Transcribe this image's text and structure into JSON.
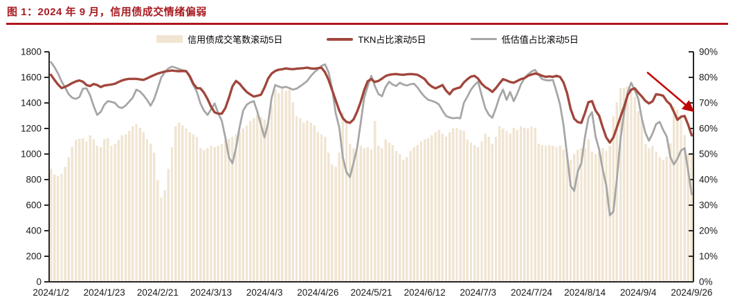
{
  "title": "图 1：2024 年 9 月，信用债成交情绪偏弱",
  "colors": {
    "title_red": "#A81C22",
    "divider_red": "#B2131B",
    "bar_fill": "#F0E5D2",
    "tkn_line": "#A0463C",
    "undervalued_line": "#A6A6A6",
    "axis": "#262626",
    "arrow": "#C00505"
  },
  "chart_data": {
    "type": "combo",
    "title": "图 1：2024 年 9 月，信用债成交情绪偏弱",
    "grid": false,
    "legend_position": "top",
    "left_axis": {
      "min": 0,
      "max": 1800,
      "step": 200
    },
    "right_axis": {
      "min": 0,
      "max": 90,
      "step": 10,
      "suffix": "%"
    },
    "x_tick_labels": [
      "2024/1/2",
      "2024/1/23",
      "2024/2/21",
      "2024/3/13",
      "2024/4/3",
      "2024/4/26",
      "2024/5/21",
      "2024/6/12",
      "2024/7/3",
      "2024/7/24",
      "2024/8/14",
      "2024/9/4",
      "2024/9/26"
    ],
    "x_tick_days": [
      0,
      15,
      30,
      45,
      60,
      75,
      90,
      105,
      120,
      135,
      150,
      165,
      180
    ],
    "n_points": 181,
    "series": [
      {
        "name": "信用债成交笔数滚动5日",
        "type": "bar",
        "axis": "left",
        "color": "#F0E5D2",
        "values": [
          885,
          840,
          830,
          845,
          900,
          975,
          1055,
          1110,
          1120,
          1125,
          1100,
          1145,
          1115,
          1065,
          1055,
          1115,
          1125,
          1065,
          1080,
          1110,
          1145,
          1155,
          1180,
          1215,
          1235,
          1205,
          1170,
          1115,
          1080,
          1010,
          795,
          660,
          715,
          885,
          1055,
          1215,
          1245,
          1225,
          1200,
          1170,
          1155,
          1135,
          1045,
          1030,
          1045,
          1065,
          1055,
          1065,
          1080,
          1110,
          1120,
          1135,
          1155,
          1170,
          1200,
          1225,
          1260,
          1280,
          1305,
          1290,
          1270,
          1250,
          1385,
          1505,
          1475,
          1520,
          1495,
          1505,
          1405,
          1295,
          1280,
          1245,
          1260,
          1245,
          1225,
          1170,
          1155,
          1135,
          1010,
          920,
          900,
          1010,
          1325,
          1245,
          1080,
          1045,
          1025,
          1065,
          1045,
          1055,
          1035,
          1260,
          1065,
          1045,
          1115,
          1090,
          1070,
          1025,
          1000,
          955,
          975,
          1025,
          1055,
          1070,
          1100,
          1115,
          1125,
          1145,
          1170,
          1190,
          1160,
          1135,
          1170,
          1200,
          1205,
          1190,
          1180,
          1110,
          1090,
          1070,
          1055,
          1100,
          1160,
          1135,
          1080,
          1135,
          1215,
          1200,
          1180,
          1160,
          1205,
          1190,
          1215,
          1205,
          1200,
          1215,
          1205,
          1080,
          1070,
          1065,
          1070,
          1065,
          1055,
          1065,
          1035,
          1010,
          955,
          1000,
          1035,
          1045,
          1045,
          1115,
          1020,
          1000,
          1010,
          1045,
          1025,
          1065,
          1295,
          1405,
          1515,
          1520,
          1530,
          1505,
          1450,
          1335,
          1270,
          1080,
          1045,
          1065,
          1020,
          975,
          955,
          980,
          1085,
          1370,
          1345,
          1305,
          1150,
          1000,
          1010
        ]
      },
      {
        "name": "TKN占比滚动5日",
        "type": "line",
        "axis": "right",
        "color": "#A0463C",
        "values": [
          81,
          79,
          77.2,
          75.8,
          76.3,
          77,
          77.8,
          78.4,
          78.8,
          78.3,
          77,
          76.6,
          77.4,
          77,
          76.2,
          76.8,
          77,
          77.2,
          77.5,
          78.2,
          78.8,
          79.2,
          79.4,
          79.4,
          79.4,
          79.2,
          79,
          79.6,
          80.3,
          80.9,
          81.5,
          81.9,
          82.3,
          82.5,
          82.7,
          82.5,
          82.4,
          82.5,
          82.4,
          80.5,
          77.5,
          75.8,
          75.7,
          74,
          71.5,
          68.5,
          66.3,
          65.8,
          65.8,
          68,
          72,
          76.5,
          78.6,
          77.5,
          75.8,
          74.3,
          73.3,
          72.5,
          72.8,
          73.2,
          76,
          79.5,
          81.5,
          82.5,
          83,
          83.2,
          83.5,
          83.3,
          83.2,
          83.4,
          83.5,
          83.6,
          83.8,
          83.5,
          83.4,
          83.6,
          83.8,
          82,
          79,
          75,
          71,
          67,
          64,
          62.6,
          62.2,
          63.5,
          66.5,
          70.3,
          75,
          78.5,
          79.3,
          78.2,
          78.6,
          79.5,
          80.5,
          81,
          81.2,
          81.3,
          81.1,
          81,
          81.2,
          81.3,
          81.2,
          81,
          80.2,
          79.3,
          77.5,
          76.4,
          75.7,
          76.3,
          77,
          74.8,
          73.4,
          75.2,
          75.7,
          76.1,
          78,
          79.3,
          80.3,
          80.6,
          79.5,
          77.5,
          76.2,
          75.4,
          74.3,
          75.8,
          77.6,
          79.3,
          78.8,
          78.2,
          77.9,
          78.6,
          79.3,
          79.7,
          80.6,
          81.1,
          81.5,
          81.2,
          80.6,
          80.2,
          80.4,
          80.2,
          80.6,
          80.2,
          78,
          73.8,
          67.6,
          63.8,
          62.5,
          62.2,
          66,
          70.3,
          70.7,
          67,
          65,
          60.5,
          56.5,
          54.5,
          56.5,
          60.5,
          64.5,
          68.5,
          73,
          75.2,
          75.7,
          74,
          72.5,
          70.8,
          69.8,
          70.6,
          73.4,
          73.2,
          72.8,
          70.7,
          69.4,
          66.5,
          63.4,
          64.6,
          64.9,
          61.5,
          57.3
        ]
      },
      {
        "name": "低估值占比滚动5日",
        "type": "line",
        "axis": "right",
        "color": "#A6A6A6",
        "values": [
          86,
          84,
          81.5,
          78.4,
          76,
          73.4,
          72,
          71.6,
          72.3,
          75.6,
          75.7,
          73,
          68.8,
          65.3,
          66.5,
          69.3,
          70.7,
          70.4,
          70,
          68.4,
          68,
          69,
          70.5,
          72.1,
          75.2,
          74.5,
          73,
          71.2,
          68.9,
          71.5,
          75.7,
          80,
          82,
          83.5,
          84.2,
          83.8,
          83.3,
          82.8,
          82.5,
          80,
          77,
          74.3,
          69.8,
          67,
          65.3,
          67.5,
          69.8,
          66,
          63,
          56.5,
          48.7,
          46.4,
          52.5,
          60.5,
          67,
          69.3,
          70.2,
          70.7,
          66.5,
          61.5,
          56.5,
          62,
          72,
          77,
          76.4,
          76,
          76.3,
          75.8,
          75.2,
          75.6,
          76.5,
          77.5,
          78.6,
          80.5,
          82,
          83.2,
          84.5,
          85.1,
          82,
          75.5,
          66,
          60.4,
          48.7,
          43,
          41,
          46.5,
          52.3,
          62,
          72,
          76.6,
          80.6,
          76.6,
          73.5,
          72.6,
          76.2,
          78.3,
          77.2,
          76.6,
          77.9,
          77.2,
          76.8,
          77.3,
          77.5,
          76,
          74,
          72.4,
          71.2,
          70.8,
          70.3,
          69.4,
          67,
          64.9,
          64.3,
          64,
          64.2,
          64,
          70,
          72.5,
          75.2,
          77,
          78.3,
          73,
          68,
          65.4,
          64.2,
          68,
          72.3,
          75.2,
          71.2,
          74.3,
          70.7,
          73.6,
          77.2,
          79.6,
          81.1,
          82.3,
          82.9,
          81,
          79.3,
          78.9,
          78.8,
          79,
          74.5,
          69.5,
          61.3,
          49.5,
          37.5,
          35.6,
          43.2,
          46.4,
          56.5,
          64.2,
          66.4,
          56.8,
          51.8,
          44,
          37.8,
          26,
          27.5,
          40.5,
          56,
          66,
          74,
          77.9,
          75,
          71.6,
          63.8,
          58.3,
          55.2,
          58,
          61.7,
          62.6,
          59.4,
          56.8,
          48.8,
          45.9,
          48.2,
          51.4,
          52.3,
          43.5,
          34.3
        ]
      }
    ],
    "annotation_arrow": {
      "from_day": 167.5,
      "from_pct": 82,
      "to_day": 180.2,
      "to_pct": 67,
      "color": "#C00505"
    }
  }
}
